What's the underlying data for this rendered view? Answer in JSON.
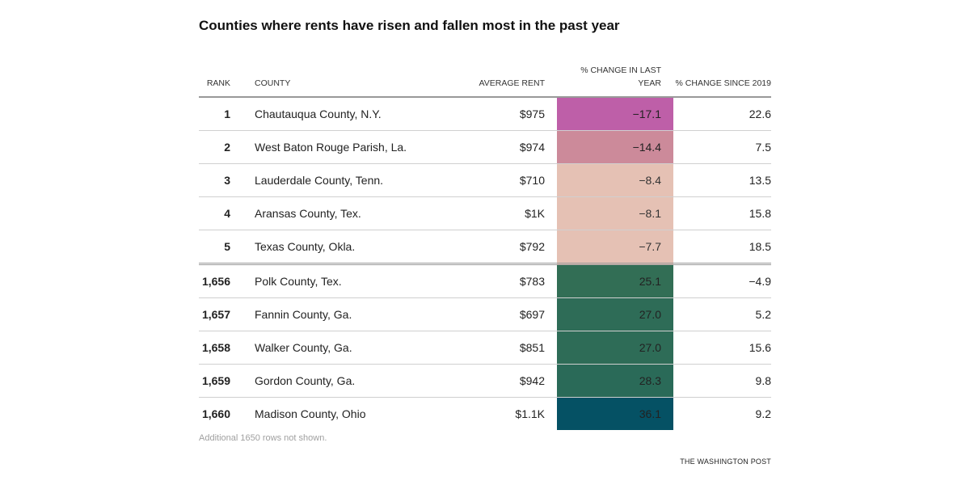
{
  "title": "Counties where rents have risen and fallen most in the past year",
  "columns": {
    "rank": "RANK",
    "county": "COUNTY",
    "rent": "AVERAGE RENT",
    "change": "% CHANGE IN LAST YEAR",
    "since": "% CHANGE SINCE 2019"
  },
  "chart_data": {
    "type": "table",
    "title": "Counties where rents have risen and fallen most in the past year",
    "columns": [
      "RANK",
      "COUNTY",
      "AVERAGE RENT",
      "% CHANGE IN LAST YEAR",
      "% CHANGE SINCE 2019"
    ],
    "rows": [
      {
        "rank": "1",
        "county": "Chautauqua County, N.Y.",
        "rent": "$975",
        "change": "−17.1",
        "since": "22.6",
        "change_value": -17.1,
        "color": "#be5fa8"
      },
      {
        "rank": "2",
        "county": "West Baton Rouge Parish, La.",
        "rent": "$974",
        "change": "−14.4",
        "since": "7.5",
        "change_value": -14.4,
        "color": "#cc8a9a"
      },
      {
        "rank": "3",
        "county": "Lauderdale County, Tenn.",
        "rent": "$710",
        "change": "−8.4",
        "since": "13.5",
        "change_value": -8.4,
        "color": "#e5c1b4"
      },
      {
        "rank": "4",
        "county": "Aransas County, Tex.",
        "rent": "$1K",
        "change": "−8.1",
        "since": "15.8",
        "change_value": -8.1,
        "color": "#e5c1b4"
      },
      {
        "rank": "5",
        "county": "Texas County, Okla.",
        "rent": "$792",
        "change": "−7.7",
        "since": "18.5",
        "change_value": -7.7,
        "color": "#e5c1b4"
      },
      {
        "rank": "1,656",
        "county": "Polk County, Tex.",
        "rent": "$783",
        "change": "25.1",
        "since": "−4.9",
        "change_value": 25.1,
        "color": "#326e55"
      },
      {
        "rank": "1,657",
        "county": "Fannin County, Ga.",
        "rent": "$697",
        "change": "27.0",
        "since": "5.2",
        "change_value": 27.0,
        "color": "#2e6c57"
      },
      {
        "rank": "1,658",
        "county": "Walker County, Ga.",
        "rent": "$851",
        "change": "27.0",
        "since": "15.6",
        "change_value": 27.0,
        "color": "#2e6c57"
      },
      {
        "rank": "1,659",
        "county": "Gordon County, Ga.",
        "rent": "$942",
        "change": "28.3",
        "since": "9.8",
        "change_value": 28.3,
        "color": "#2a6a58"
      },
      {
        "rank": "1,660",
        "county": "Madison County, Ohio",
        "rent": "$1.1K",
        "change": "36.1",
        "since": "9.2",
        "change_value": 36.1,
        "color": "#055164"
      }
    ]
  },
  "footnote": "Additional 1650 rows not shown.",
  "credit": "THE WASHINGTON POST"
}
